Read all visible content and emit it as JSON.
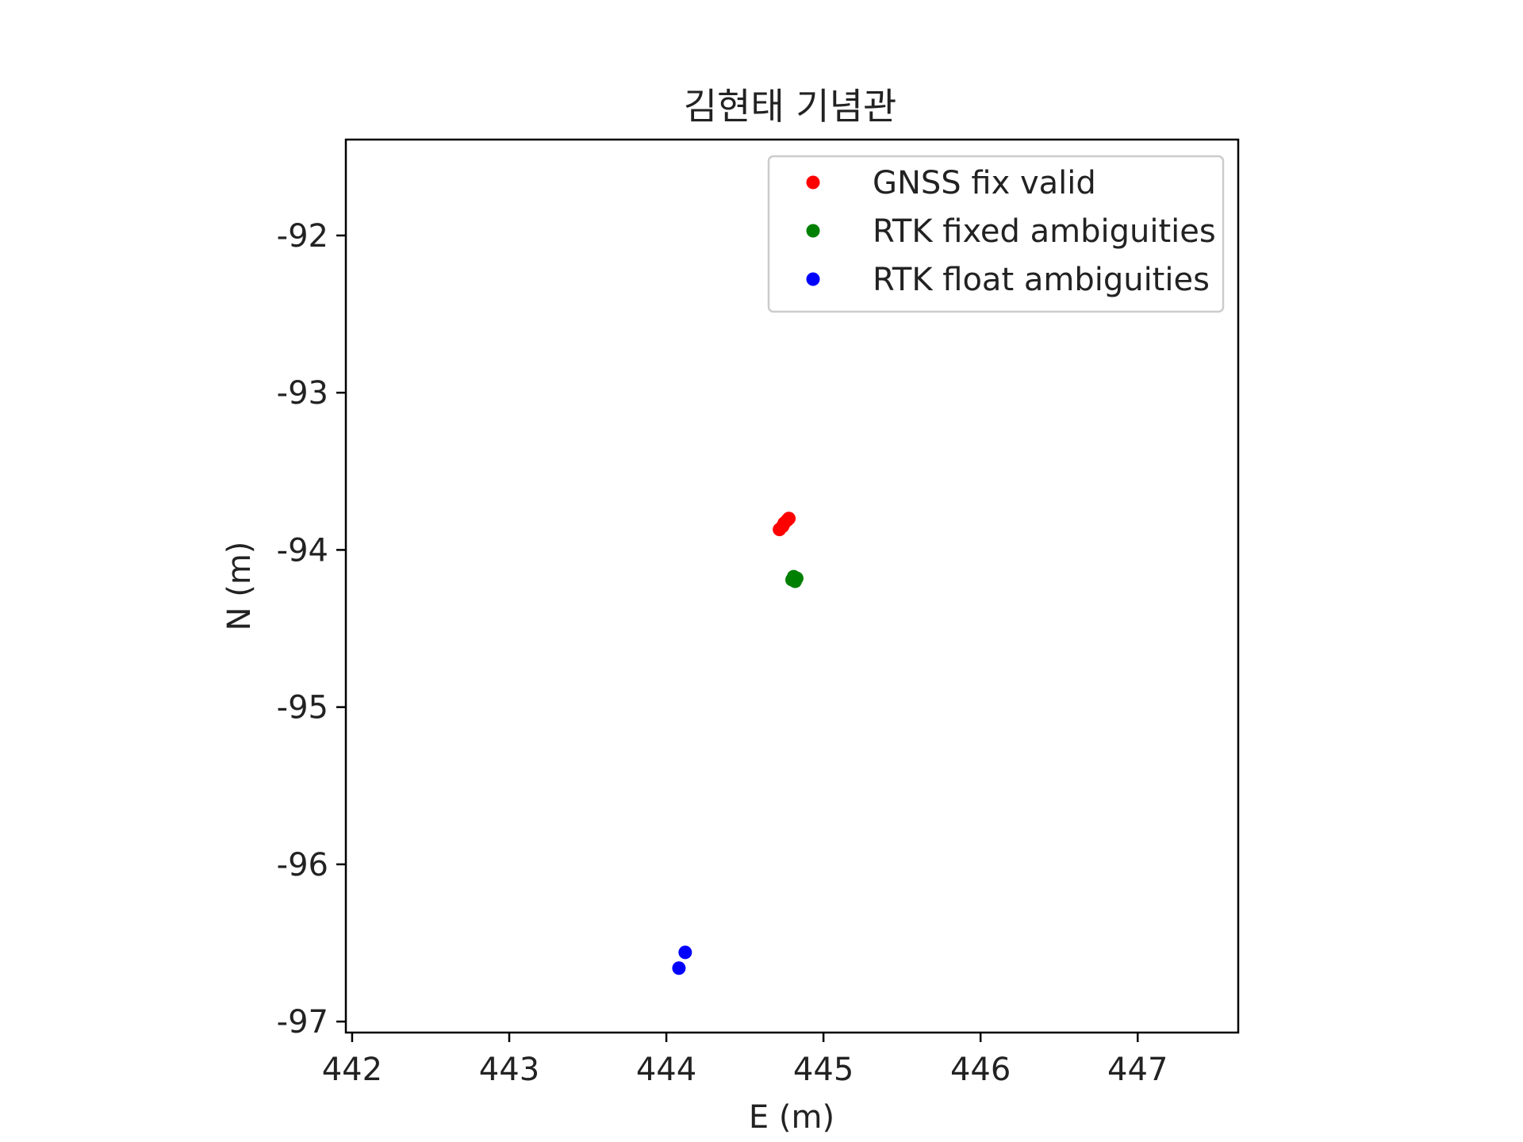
{
  "chart_data": {
    "type": "scatter",
    "title": "김현태 기념관",
    "xlabel": "E (m)",
    "ylabel": "N (m)",
    "xlim": [
      441.96,
      447.64
    ],
    "ylim": [
      -97.07,
      -91.39
    ],
    "xticks": [
      442,
      443,
      444,
      445,
      446,
      447
    ],
    "yticks": [
      -92,
      -93,
      -94,
      -95,
      -96,
      -97
    ],
    "xtick_labels": [
      "442",
      "443",
      "444",
      "445",
      "446",
      "447"
    ],
    "ytick_labels": [
      "-92",
      "-93",
      "-94",
      "-95",
      "-96",
      "-97"
    ],
    "grid": false,
    "legend_position": "top-right",
    "series": [
      {
        "name": "GNSS fix valid",
        "color": "#ff0000",
        "points": [
          {
            "x": 444.72,
            "y": -93.87
          },
          {
            "x": 444.74,
            "y": -93.85
          },
          {
            "x": 444.75,
            "y": -93.83
          },
          {
            "x": 444.77,
            "y": -93.81
          },
          {
            "x": 444.78,
            "y": -93.8
          }
        ]
      },
      {
        "name": "RTK fixed ambiguities",
        "color": "#008000",
        "points": [
          {
            "x": 444.81,
            "y": -94.17
          },
          {
            "x": 444.82,
            "y": -94.18
          },
          {
            "x": 444.81,
            "y": -94.19
          },
          {
            "x": 444.82,
            "y": -94.2
          },
          {
            "x": 444.83,
            "y": -94.18
          },
          {
            "x": 444.8,
            "y": -94.19
          }
        ]
      },
      {
        "name": "RTK float ambiguities",
        "color": "#0000ff",
        "points": [
          {
            "x": 444.12,
            "y": -96.56
          },
          {
            "x": 444.08,
            "y": -96.66
          }
        ]
      }
    ]
  }
}
